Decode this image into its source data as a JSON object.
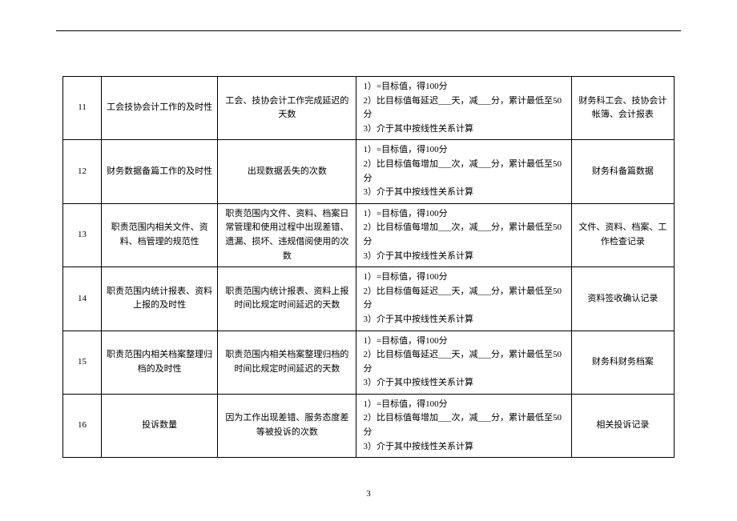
{
  "page_number": "3",
  "rows": [
    {
      "idx": "11",
      "name": "工会技协会计工作的及时性",
      "metric": "工会、技协会计工作完成延迟的天数",
      "scoring": "1）=目标值，得100分\n2）比目标值每延迟___天，减___分，累计最低至50分\n3）介于其中按线性关系计算",
      "source": "财务科工会、技协会计帐簿、会计报表"
    },
    {
      "idx": "12",
      "name": "财务数据备篇工作的及时性",
      "metric": "出现数据丢失的次数",
      "scoring": "1）=目标值，得100分\n2）比目标值每增加___次，减___分，累计最低至50分\n3）介于其中按线性关系计算",
      "source": "财务科备篇数据"
    },
    {
      "idx": "13",
      "name": "职责范围内相关文件、资料、档管理的规范性",
      "metric": "职责范围内文件、资料、档案日常管理和使用过程中出现差错、遗漏、损坏、违规借阅使用的次数",
      "scoring": "1）=目标值，得100分\n2）比目标值每增加___次，减___分，累计最低至50分\n3）介于其中按线性关系计算",
      "source": "文件、资料、档案、工作检查记录"
    },
    {
      "idx": "14",
      "name": "职责范围内统计报表、资料上报的及时性",
      "metric": "职责范围内统计报表、资料上报时间比规定时间延迟的天数",
      "scoring": "1）=目标值，得100分\n2）比目标值每延迟___天，减___分，累计最低至50分\n3）介于其中按线性关系计算",
      "source": "资料签收确认记录"
    },
    {
      "idx": "15",
      "name": "职责范围内相关档案整理归档的及时性",
      "metric": "职责范围内相关档案整理归档的时间比规定时间延迟的天数",
      "scoring": "1）=目标值，得100分\n2）比目标值每延迟___天，减___分，累计最低至50分\n3）介于其中按线性关系计算",
      "source": "财务科财务档案"
    },
    {
      "idx": "16",
      "name": "投诉数量",
      "metric": "因为工作出现差错、服务态度差等被投诉的次数",
      "scoring": "1）=目标值，得100分\n2）比目标值每增加___次，减___分，累计最低至50分\n3）介于其中按线性关系计算",
      "source": "相关投诉记录"
    }
  ]
}
